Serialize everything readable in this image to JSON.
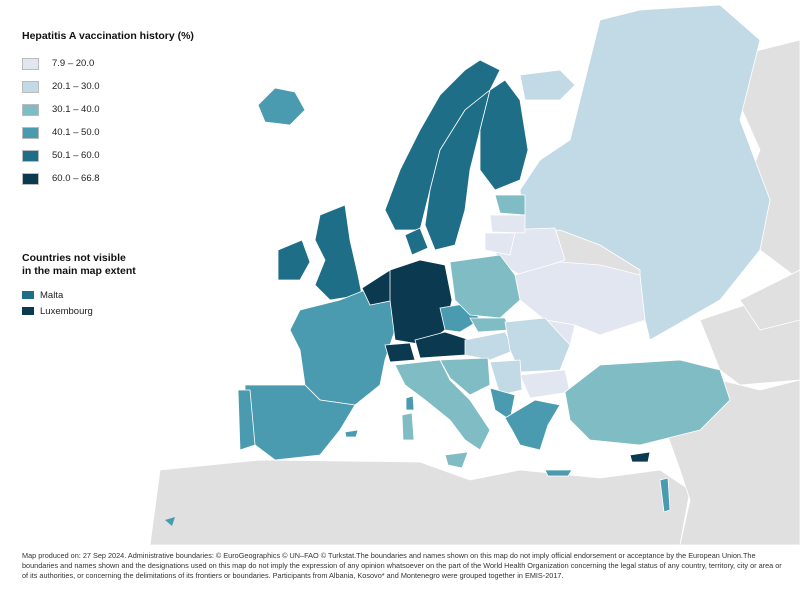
{
  "legend": {
    "title": "Hepatitis A vaccination history (%)",
    "items": [
      {
        "label": "7.9 – 20.0",
        "color": "#e2e6f0"
      },
      {
        "label": "20.1 – 30.0",
        "color": "#c2d9e6"
      },
      {
        "label": "30.1 – 40.0",
        "color": "#7fbcc4"
      },
      {
        "label": "40.1 – 50.0",
        "color": "#4a9bb0"
      },
      {
        "label": "50.1 – 60.0",
        "color": "#1e6e88"
      },
      {
        "label": "60.0 – 66.8",
        "color": "#0b3a50"
      }
    ]
  },
  "not_visible": {
    "title_line1": "Countries not visible",
    "title_line2": "in the main map extent",
    "items": [
      {
        "label": "Malta",
        "color": "#1e6e88"
      },
      {
        "label": "Luxembourg",
        "color": "#0b3a50"
      }
    ]
  },
  "colors": {
    "sea": "#ffffff",
    "no_data_land": "#e0e0e0",
    "border": "#ffffff"
  },
  "footnote": "Map produced on: 27 Sep 2024. Administrative boundaries: © EuroGeographics © UN–FAO © Turkstat.The boundaries and names shown on this map do not imply official endorsement or acceptance by the European Union.The boundaries and names shown and the designations used on this map do not imply the expression of any opinion whatsoever on the part of the World Health Organization concerning the legal status of any country, territory, city or area or of its authorities, or concerning the delimitations of its frontiers or boundaries. Participants from Albania, Kosovo* and Montenegro were grouped together in EMIS-2017."
}
